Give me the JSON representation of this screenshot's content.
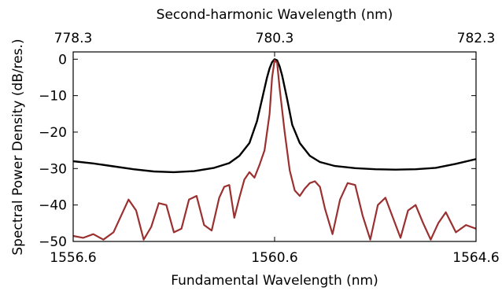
{
  "chart_data": {
    "type": "line",
    "xlabel": "Fundamental Wavelength (nm)",
    "x2label": "Second-harmonic Wavelength (nm)",
    "ylabel": "Spectral Power Density (dB/res.)",
    "xlim": [
      1556.6,
      1564.6
    ],
    "ylim": [
      -50,
      2
    ],
    "xticks": [
      1556.6,
      1560.6,
      1564.6
    ],
    "xtick_labels": [
      "1556.6",
      "1560.6",
      "1564.6"
    ],
    "x2ticks": [
      1556.6,
      1560.6,
      1564.6
    ],
    "x2tick_labels": [
      "778.3",
      "780.3",
      "782.3"
    ],
    "yticks": [
      0,
      -10,
      -20,
      -30,
      -40,
      -50
    ],
    "ytick_labels": [
      "0",
      "−10",
      "−20",
      "−30",
      "−40",
      "−50"
    ],
    "grid": false,
    "series": [
      {
        "color": "#000000",
        "x": [
          1556.6,
          1557.0,
          1557.4,
          1557.8,
          1558.2,
          1558.6,
          1559.0,
          1559.4,
          1559.7,
          1559.9,
          1560.1,
          1560.25,
          1560.35,
          1560.45,
          1560.5,
          1560.55,
          1560.6,
          1560.65,
          1560.7,
          1560.75,
          1560.85,
          1560.95,
          1561.1,
          1561.3,
          1561.5,
          1561.8,
          1562.2,
          1562.6,
          1563.0,
          1563.4,
          1563.8,
          1564.2,
          1564.6
        ],
        "y": [
          -28,
          -28.6,
          -29.4,
          -30.2,
          -30.8,
          -31.0,
          -30.7,
          -29.8,
          -28.5,
          -26.5,
          -23.0,
          -17.0,
          -11.0,
          -5.0,
          -2.5,
          -0.8,
          0,
          -0.3,
          -2.0,
          -4.5,
          -11.0,
          -18.0,
          -23.0,
          -26.5,
          -28.2,
          -29.3,
          -29.9,
          -30.2,
          -30.3,
          -30.2,
          -29.8,
          -28.7,
          -27.4
        ]
      },
      {
        "color": "#9b3030",
        "x": [
          1556.6,
          1556.8,
          1557.0,
          1557.2,
          1557.4,
          1557.55,
          1557.7,
          1557.85,
          1558.0,
          1558.15,
          1558.3,
          1558.45,
          1558.6,
          1558.75,
          1558.9,
          1559.05,
          1559.2,
          1559.35,
          1559.5,
          1559.6,
          1559.7,
          1559.8,
          1559.9,
          1560.0,
          1560.1,
          1560.2,
          1560.3,
          1560.4,
          1560.5,
          1560.55,
          1560.6,
          1560.65,
          1560.7,
          1560.8,
          1560.9,
          1561.0,
          1561.1,
          1561.2,
          1561.3,
          1561.4,
          1561.5,
          1561.6,
          1561.75,
          1561.9,
          1562.05,
          1562.2,
          1562.35,
          1562.5,
          1562.65,
          1562.8,
          1562.95,
          1563.1,
          1563.25,
          1563.4,
          1563.55,
          1563.7,
          1563.85,
          1564.0,
          1564.2,
          1564.4,
          1564.6
        ],
        "y": [
          -48.5,
          -49.0,
          -48.0,
          -49.5,
          -47.5,
          -43.0,
          -38.5,
          -41.5,
          -49.5,
          -46.0,
          -39.5,
          -40.0,
          -47.5,
          -46.5,
          -38.5,
          -37.5,
          -45.5,
          -47.0,
          -38.0,
          -35.0,
          -34.5,
          -43.5,
          -38.0,
          -33.0,
          -31.0,
          -32.5,
          -29.0,
          -25.0,
          -15.0,
          -5.0,
          -0.3,
          -1.0,
          -8.0,
          -20.0,
          -30.5,
          -36.0,
          -37.5,
          -35.5,
          -34.0,
          -33.5,
          -35.0,
          -41.0,
          -48.0,
          -38.5,
          -34.0,
          -34.5,
          -43.0,
          -49.5,
          -40.0,
          -38.0,
          -43.5,
          -49.0,
          -41.5,
          -40.0,
          -45.0,
          -49.5,
          -45.0,
          -42.0,
          -47.5,
          -45.5,
          -46.5
        ]
      }
    ]
  }
}
